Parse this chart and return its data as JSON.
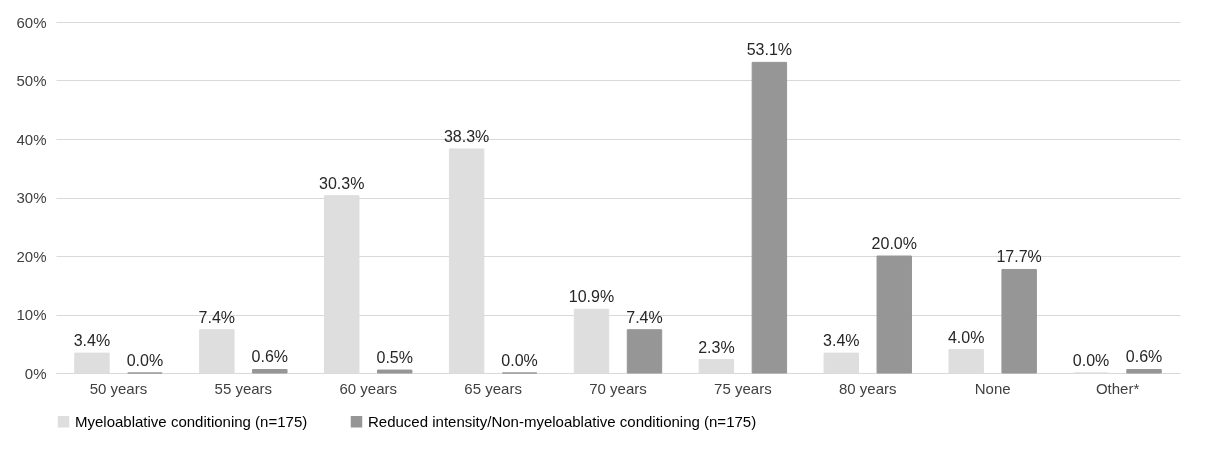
{
  "chart_data": {
    "type": "bar",
    "categories": [
      "50 years",
      "55 years",
      "60 years",
      "65 years",
      "70 years",
      "75 years",
      "80 years",
      "None",
      "Other*"
    ],
    "series": [
      {
        "name": "Myeloablative conditioning (n=175)",
        "color": "#dedede",
        "values": [
          3.4,
          7.4,
          30.3,
          38.3,
          10.9,
          2.3,
          3.4,
          4.0,
          0.0
        ],
        "value_labels": [
          "3.4%",
          "7.4%",
          "30.3%",
          "38.3%",
          "10.9%",
          "2.3%",
          "3.4%",
          "4.0%",
          "0.0%"
        ]
      },
      {
        "name": "Reduced intensity/Non-myeloablative conditioning (n=175)",
        "color": "#969696",
        "values": [
          0.0,
          0.6,
          0.5,
          0.0,
          7.4,
          53.1,
          20.0,
          17.7,
          0.6
        ],
        "value_labels": [
          "0.0%",
          "0.6%",
          "0.5%",
          "0.0%",
          "7.4%",
          "53.1%",
          "20.0%",
          "17.7%",
          "0.6%"
        ]
      }
    ],
    "ylim": [
      0,
      60
    ],
    "yticks": [
      {
        "value": 0,
        "label": "0%"
      },
      {
        "value": 10,
        "label": "10%"
      },
      {
        "value": 20,
        "label": "20%"
      },
      {
        "value": 30,
        "label": "30%"
      },
      {
        "value": 40,
        "label": "40%"
      },
      {
        "value": 50,
        "label": "50%"
      },
      {
        "value": 60,
        "label": "60%"
      }
    ],
    "grid": "y",
    "legend": "bottom"
  }
}
